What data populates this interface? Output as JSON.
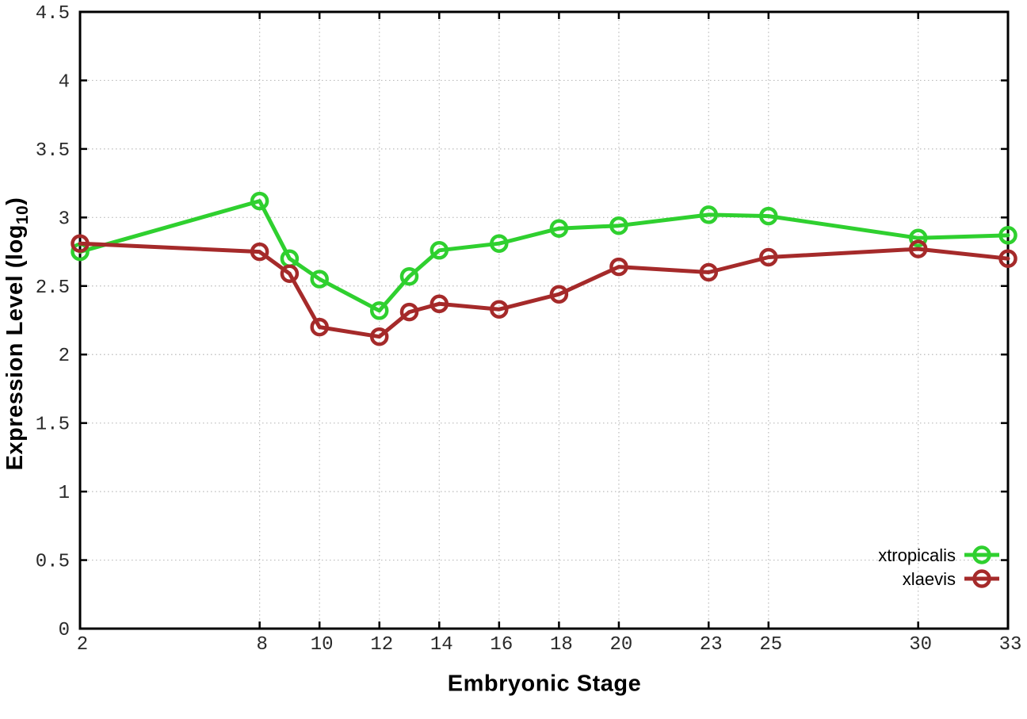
{
  "chart_data": {
    "type": "line",
    "title": "",
    "xlabel": "Embryonic Stage",
    "ylabel_prefix": "Expression Level (log",
    "ylabel_sub": "10",
    "ylabel_suffix": ")",
    "xlim": [
      2,
      33
    ],
    "ylim": [
      0,
      4.5
    ],
    "grid": true,
    "legend_position": "bottom-right",
    "x": [
      2,
      8,
      9,
      10,
      12,
      13,
      14,
      16,
      18,
      20,
      23,
      25,
      30,
      33
    ],
    "xticks": [
      2,
      8,
      10,
      12,
      14,
      16,
      18,
      20,
      23,
      25,
      30,
      33
    ],
    "xtick_labels": [
      "2",
      "8",
      "10",
      "12",
      "14",
      "16",
      "18",
      "20",
      "23",
      "25",
      "30",
      "33"
    ],
    "yticks": [
      0,
      0.5,
      1,
      1.5,
      2,
      2.5,
      3,
      3.5,
      4,
      4.5
    ],
    "ytick_labels": [
      "0",
      "0.5",
      "1",
      "1.5",
      "2",
      "2.5",
      "3",
      "3.5",
      "4",
      "4.5"
    ],
    "series": [
      {
        "name": "xtropicalis",
        "color": "#2fd02f",
        "values": [
          2.75,
          3.12,
          2.7,
          2.55,
          2.32,
          2.57,
          2.76,
          2.81,
          2.92,
          2.94,
          3.02,
          3.01,
          2.85,
          2.87
        ]
      },
      {
        "name": "xlaevis",
        "color": "#a52a2a",
        "values": [
          2.81,
          2.75,
          2.59,
          2.2,
          2.13,
          2.31,
          2.37,
          2.33,
          2.44,
          2.64,
          2.6,
          2.71,
          2.77,
          2.7
        ]
      }
    ],
    "colors": {
      "grid": "#bbbbbb",
      "axis": "#000000",
      "tick_text": "#2a2a2a",
      "legend_text": "#000000",
      "background": "#ffffff"
    }
  }
}
